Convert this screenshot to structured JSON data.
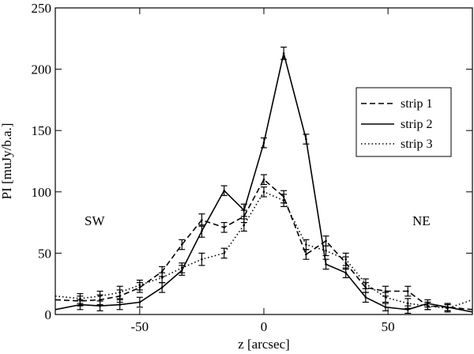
{
  "chart_data": {
    "type": "line",
    "title": "",
    "xlabel": "z [arcsec]",
    "ylabel": "PI [muJy/b.a.]",
    "xlim": [
      -84,
      84
    ],
    "ylim": [
      0,
      250
    ],
    "xticks": [
      -50,
      0,
      50
    ],
    "yticks": [
      0,
      50,
      100,
      150,
      200,
      250
    ],
    "grid": false,
    "legend_position": "right",
    "annotations": [
      {
        "text": "SW",
        "x": -66,
        "y": 76
      },
      {
        "text": "NE",
        "x": 65,
        "y": 76
      }
    ],
    "series": [
      {
        "name": "strip 1",
        "style": "dashed",
        "x": [
          -84,
          -74,
          -66,
          -58,
          -50,
          -41,
          -33,
          -25,
          -16,
          -8,
          0,
          8,
          17,
          25,
          33,
          41,
          49,
          58,
          66,
          74,
          84
        ],
        "y": [
          12,
          11,
          12,
          15,
          22,
          35,
          57,
          77,
          71,
          80,
          110,
          96,
          49,
          60,
          42,
          22,
          19,
          19,
          7,
          6,
          4
        ],
        "err": [
          3,
          4,
          4,
          5,
          4,
          4,
          4,
          5,
          4,
          5,
          4,
          5,
          4,
          4,
          5,
          4,
          4,
          4,
          3,
          3,
          3
        ]
      },
      {
        "name": "strip 2",
        "style": "solid",
        "x": [
          -84,
          -74,
          -66,
          -58,
          -50,
          -41,
          -33,
          -25,
          -16,
          -8,
          0,
          8,
          17,
          25,
          33,
          41,
          49,
          58,
          66,
          74,
          84
        ],
        "y": [
          4,
          8,
          7,
          8,
          10,
          22,
          36,
          68,
          101,
          85,
          140,
          213,
          143,
          41,
          34,
          14,
          6,
          4,
          9,
          6,
          2
        ],
        "err": [
          3,
          4,
          4,
          4,
          4,
          4,
          4,
          5,
          4,
          5,
          4,
          5,
          4,
          4,
          4,
          4,
          3,
          3,
          3,
          3,
          3
        ]
      },
      {
        "name": "strip 3",
        "style": "dotted",
        "x": [
          -84,
          -74,
          -66,
          -58,
          -50,
          -41,
          -33,
          -25,
          -16,
          -8,
          0,
          8,
          17,
          25,
          33,
          41,
          49,
          58,
          66,
          74,
          84
        ],
        "y": [
          15,
          13,
          15,
          18,
          24,
          30,
          38,
          45,
          50,
          73,
          100,
          93,
          57,
          52,
          45,
          25,
          14,
          9,
          7,
          5,
          12
        ],
        "err": [
          3,
          4,
          4,
          5,
          4,
          4,
          4,
          5,
          4,
          5,
          4,
          5,
          4,
          4,
          5,
          4,
          4,
          4,
          3,
          3,
          3
        ]
      }
    ]
  }
}
